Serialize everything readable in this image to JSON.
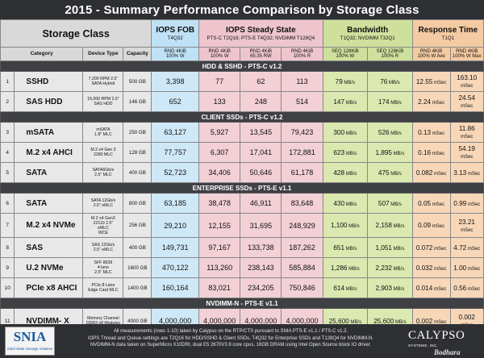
{
  "title": "2015 - Summary Performance Comparison by Storage Class",
  "headers": {
    "storage_class": "Storage Class",
    "category": "Category",
    "device_type": "Device Type",
    "capacity": "Capacity",
    "groups": [
      {
        "name": "IOPS FOB",
        "sub": "T4Q32"
      },
      {
        "name": "IOPS Steady State",
        "sub": "PTS-C T2Q16; PTS-E T4Q32; NVDIMM T128Q4"
      },
      {
        "name": "Bandwidth",
        "sub": "T1Q32; NVDIMM T32Q1"
      },
      {
        "name": "Response Time",
        "sub": "T1Q1"
      }
    ],
    "metrics": [
      {
        "l1": "RND 4KiB",
        "l2": "100% W"
      },
      {
        "l1": "RND 4KiB",
        "l2": "100% W"
      },
      {
        "l1": "RND 4KiB",
        "l2": "65:35 RW"
      },
      {
        "l1": "RND 4KiB",
        "l2": "100% R"
      },
      {
        "l1": "SEQ 128KiB",
        "l2": "100% W"
      },
      {
        "l1": "SEQ 128KiB",
        "l2": "100% R"
      },
      {
        "l1": "RND 4KiB",
        "l2": "100% W Ave"
      },
      {
        "l1": "RND 4KiB",
        "l2": "100% W Max"
      }
    ]
  },
  "units": {
    "bw": "MB/s",
    "rt": "mSec"
  },
  "sections": [
    {
      "title": "HDD & SSHD - PTS-C v1.2",
      "rows": [
        {
          "no": "1",
          "name": "SSHD",
          "device": [
            "7,200 RPM 2.5\"",
            "SATA Hybrid"
          ],
          "capacity": "500 GB",
          "fob": "3,398",
          "ss_w": "77",
          "ss_rw": "62",
          "ss_r": "113",
          "bw_w": "79",
          "bw_r": "76",
          "rt_ave": "12.55",
          "rt_max": "163.10"
        },
        {
          "no": "2",
          "name": "SAS HDD",
          "device": [
            "15,000 RPM 2.5\"",
            "SAS HDD"
          ],
          "capacity": "146 GB",
          "fob": "652",
          "ss_w": "133",
          "ss_rw": "248",
          "ss_r": "514",
          "bw_w": "147",
          "bw_r": "174",
          "rt_ave": "2.24",
          "rt_max": "24.54"
        }
      ]
    },
    {
      "title": "CLIENT SSDs - PTS-C v1.2",
      "rows": [
        {
          "no": "3",
          "name": "mSATA",
          "device": [
            "mSATA",
            "1.8\" MLC"
          ],
          "capacity": "250 GB",
          "fob": "63,127",
          "ss_w": "5,927",
          "ss_rw": "13,545",
          "ss_r": "79,423",
          "bw_w": "300",
          "bw_r": "526",
          "rt_ave": "0.13",
          "rt_max": "11.86"
        },
        {
          "no": "4",
          "name": "M.2 x4 AHCI",
          "device": [
            "M.2 x4 Gen 3",
            "2280 MLC"
          ],
          "capacity": "128 GB",
          "fob": "77,757",
          "ss_w": "6,307",
          "ss_rw": "17,041",
          "ss_r": "172,881",
          "bw_w": "623",
          "bw_r": "1,895",
          "rt_ave": "0.16",
          "rt_max": "54.19"
        },
        {
          "no": "5",
          "name": "SATA",
          "device": [
            "SATA6Gb/s",
            "2.5\" MLC"
          ],
          "capacity": "400 GB",
          "fob": "52,723",
          "ss_w": "34,406",
          "ss_rw": "50,646",
          "ss_r": "61,178",
          "bw_w": "428",
          "bw_r": "475",
          "rt_ave": "0.082",
          "rt_max": "3.13"
        }
      ]
    },
    {
      "title": "ENTERPRISE SSDs - PTS-E v1.1",
      "rows": [
        {
          "no": "6",
          "name": "SATA",
          "device": [
            "SATA 12Gb/s",
            "2.5\" eMLC"
          ],
          "capacity": "800 GB",
          "fob": "63,185",
          "ss_w": "38,478",
          "ss_rw": "46,911",
          "ss_r": "83,648",
          "bw_w": "430",
          "bw_r": "507",
          "rt_ave": "0.05",
          "rt_max": "0.99"
        },
        {
          "no": "7",
          "name": "M.2 x4 NVMe",
          "device": [
            "M.2 x4 Gen3",
            "22110 2.5\"",
            "eMLC",
            "WCE"
          ],
          "capacity": "256 GB",
          "fob": "29,210",
          "ss_w": "12,155",
          "ss_rw": "31,695",
          "ss_r": "248,929",
          "bw_w": "1,100",
          "bw_r": "2,158",
          "rt_ave": "0.09",
          "rt_max": "23.21"
        },
        {
          "no": "8",
          "name": "SAS",
          "device": [
            "SAS 12Gb/s",
            "2.5\" eMLC"
          ],
          "capacity": "400 GB",
          "fob": "149,731",
          "ss_w": "97,167",
          "ss_rw": "133,738",
          "ss_r": "187,262",
          "bw_w": "651",
          "bw_r": "1,051",
          "rt_ave": "0.072",
          "rt_max": "4.72"
        },
        {
          "no": "9",
          "name": "U.2 NVMe",
          "device": [
            "SFF 8639",
            "4 lane",
            "2.5\" MLC"
          ],
          "capacity": "1600 GB",
          "fob": "470,122",
          "ss_w": "113,260",
          "ss_rw": "238,143",
          "ss_r": "585,884",
          "bw_w": "1,286",
          "bw_r": "2,232",
          "rt_ave": "0.032",
          "rt_max": "1.00"
        },
        {
          "no": "10",
          "name": "PCIe x8 AHCI",
          "device": [
            "PCIe 8 Lane",
            "Edge Card MLC"
          ],
          "capacity": "1400 GB",
          "fob": "160,164",
          "ss_w": "83,021",
          "ss_rw": "234,205",
          "ss_r": "750,846",
          "bw_w": "614",
          "bw_r": "2,903",
          "rt_ave": "0.014",
          "rt_max": "0.56"
        }
      ]
    },
    {
      "title": "NVDIMM-N - PTS-E v1.1",
      "rows": [
        {
          "no": "11",
          "name": "NVDIMM- X",
          "device": [
            "Memory Channel",
            "DDR3 x8 Modules"
          ],
          "capacity": "4000 GB",
          "fob": "4,000,000",
          "ss_w": "4,000,000",
          "ss_rw": "4,000,000",
          "ss_r": "4,000,000",
          "bw_w": "25,600",
          "bw_r": "25,600",
          "rt_ave": "0.002",
          "rt_max": "0.002"
        }
      ]
    }
  ],
  "footer": {
    "logo_left": "SNIA",
    "logo_left_tag": "Solid State Storage Initiative",
    "notes": [
      "All measurements (rows 1-10) taken by Calypso on the RTP/CTS pursuant to SNIA PTS-E v1.1 / PTS-C v1.2.",
      "IOPS Thread and Queue settings are T2Q16 for HDD/SSHD & Client SSDs, T4Q32 for Enterprise SSDs and T128Q4 for NVDIMM-N.",
      "NVDIMM-N data taken on SuperMicro X10DRI, dual E5 2670V3 8 core cpus, 16GB DRAM using Intel Open Source block IO driver."
    ],
    "logo_right": "CALYPSO",
    "logo_right_sub": "SYSTEMS, INC.",
    "watermark": "Bodhara"
  },
  "colors": {
    "fob": "#cfe8f7",
    "steady": "#f2d0d6",
    "bandwidth": "#dbe8b0",
    "response": "#f7d7b8",
    "header_dark": "#2e2f33"
  },
  "chart_data": {
    "type": "table",
    "title": "2015 - Summary Performance Comparison by Storage Class",
    "columns": [
      "Category",
      "Device Type",
      "Capacity",
      "IOPS FOB RND 4KiB 100% W",
      "IOPS SS RND 4KiB 100% W",
      "IOPS SS RND 4KiB 65:35 RW",
      "IOPS SS RND 4KiB 100% R",
      "BW SEQ 128KiB 100% W (MB/s)",
      "BW SEQ 128KiB 100% R (MB/s)",
      "RT RND 4KiB 100% W Ave (mSec)",
      "RT RND 4KiB 100% W Max (mSec)"
    ],
    "rows": [
      [
        "SSHD",
        "7,200 RPM 2.5\" SATA Hybrid",
        "500 GB",
        3398,
        77,
        62,
        113,
        79,
        76,
        12.55,
        163.1
      ],
      [
        "SAS HDD",
        "15,000 RPM 2.5\" SAS HDD",
        "146 GB",
        652,
        133,
        248,
        514,
        147,
        174,
        2.24,
        24.54
      ],
      [
        "mSATA",
        "mSATA 1.8\" MLC",
        "250 GB",
        63127,
        5927,
        13545,
        79423,
        300,
        526,
        0.13,
        11.86
      ],
      [
        "M.2 x4 AHCI",
        "M.2 x4 Gen 3 2280 MLC",
        "128 GB",
        77757,
        6307,
        17041,
        172881,
        623,
        1895,
        0.16,
        54.19
      ],
      [
        "SATA",
        "SATA6Gb/s 2.5\" MLC",
        "400 GB",
        52723,
        34406,
        50646,
        61178,
        428,
        475,
        0.082,
        3.13
      ],
      [
        "SATA",
        "SATA 12Gb/s 2.5\" eMLC",
        "800 GB",
        63185,
        38478,
        46911,
        83648,
        430,
        507,
        0.05,
        0.99
      ],
      [
        "M.2 x4 NVMe",
        "M.2 x4 Gen3 22110 2.5\" eMLC WCE",
        "256 GB",
        29210,
        12155,
        31695,
        248929,
        1100,
        2158,
        0.09,
        23.21
      ],
      [
        "SAS",
        "SAS 12Gb/s 2.5\" eMLC",
        "400 GB",
        149731,
        97167,
        133738,
        187262,
        651,
        1051,
        0.072,
        4.72
      ],
      [
        "U.2 NVMe",
        "SFF 8639 4 lane 2.5\" MLC",
        "1600 GB",
        470122,
        113260,
        238143,
        585884,
        1286,
        2232,
        0.032,
        1.0
      ],
      [
        "PCIe x8 AHCI",
        "PCIe 8 Lane Edge Card MLC",
        "1400 GB",
        160164,
        83021,
        234205,
        750846,
        614,
        2903,
        0.014,
        0.56
      ],
      [
        "NVDIMM- X",
        "Memory Channel DDR3 x8 Modules",
        "4000 GB",
        4000000,
        4000000,
        4000000,
        4000000,
        25600,
        25600,
        0.002,
        0.002
      ]
    ]
  }
}
